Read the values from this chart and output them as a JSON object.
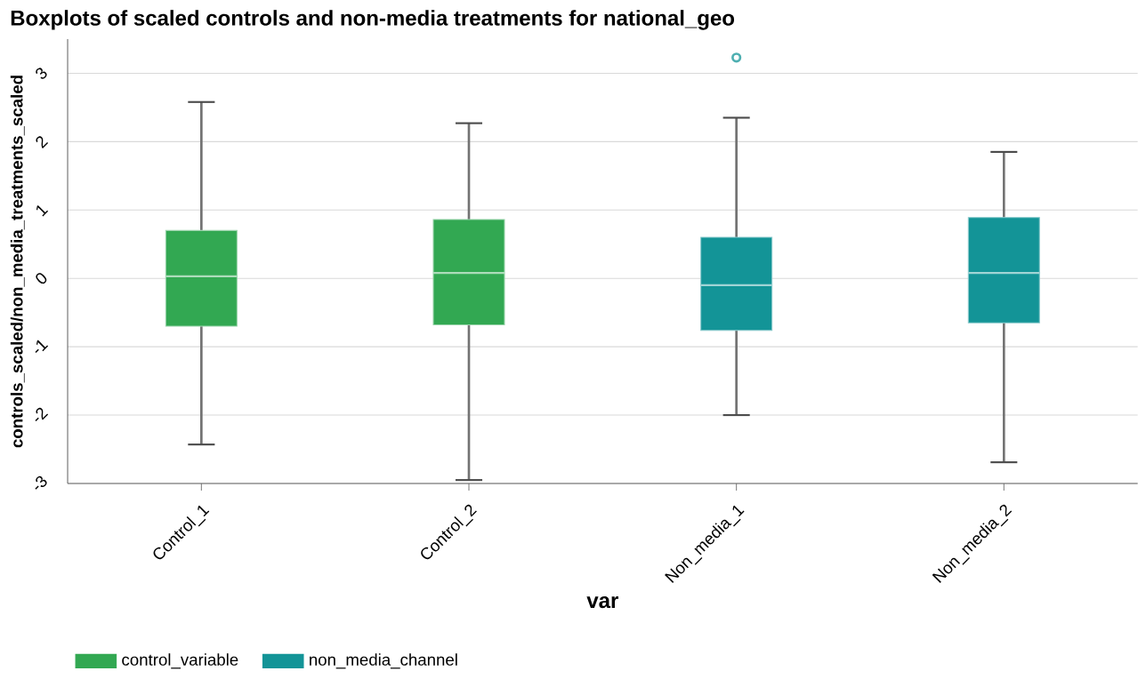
{
  "chart_data": {
    "type": "box",
    "title": "Boxplots of scaled controls and non-media treatments for national_geo",
    "xlabel": "var",
    "ylabel": "controls_scaled/non_media_treatments_scaled",
    "categories": [
      "Control_1",
      "Control_2",
      "Non_media_1",
      "Non_media_2"
    ],
    "series": [
      {
        "name": "control_variable",
        "color": "#32a852",
        "boxes": [
          {
            "low": -2.43,
            "q1": -0.7,
            "median": 0.03,
            "q3": 0.7,
            "high": 2.58
          },
          {
            "low": -2.95,
            "q1": -0.68,
            "median": 0.08,
            "q3": 0.86,
            "high": 2.27
          },
          null,
          null
        ]
      },
      {
        "name": "non_media_channel",
        "color": "#139497",
        "boxes": [
          null,
          null,
          {
            "low": -2.0,
            "q1": -0.76,
            "median": -0.1,
            "q3": 0.6,
            "high": 2.35,
            "outliers": [
              3.23
            ]
          },
          {
            "low": -2.69,
            "q1": -0.65,
            "median": 0.08,
            "q3": 0.89,
            "high": 1.85
          }
        ]
      }
    ],
    "ylim": [
      -3,
      3.5
    ],
    "yticks": [
      -3,
      -2,
      -1,
      0,
      1,
      2,
      3
    ],
    "grid": "y",
    "legend": "bottom left"
  }
}
